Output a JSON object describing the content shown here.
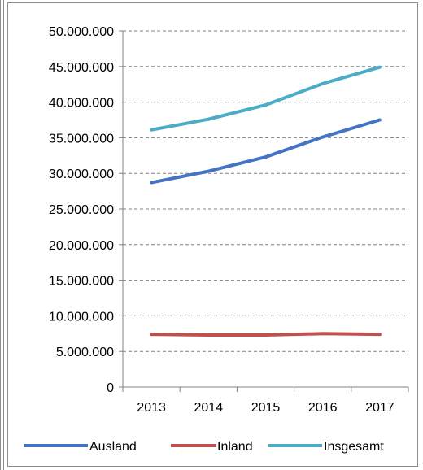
{
  "chart_data": {
    "type": "line",
    "title": "",
    "xlabel": "",
    "ylabel": "",
    "x": [
      "2013",
      "2014",
      "2015",
      "2016",
      "2017"
    ],
    "ylim": [
      0,
      50000000
    ],
    "yticks": [
      0,
      5000000,
      10000000,
      15000000,
      20000000,
      25000000,
      30000000,
      35000000,
      40000000,
      45000000,
      50000000
    ],
    "ytick_labels": [
      "0",
      "5.000.000",
      "10.000.000",
      "15.000.000",
      "20.000.000",
      "25.000.000",
      "30.000.000",
      "35.000.000",
      "40.000.000",
      "45.000.000",
      "50.000.000"
    ],
    "grid": "horizontal dashed",
    "legend_position": "bottom",
    "series": [
      {
        "name": "Ausland",
        "color": "#4472c4",
        "values": [
          28700000,
          30300000,
          32300000,
          35100000,
          37500000
        ]
      },
      {
        "name": "Inland",
        "color": "#c0504d",
        "values": [
          7400000,
          7300000,
          7300000,
          7500000,
          7400000
        ]
      },
      {
        "name": "Insgesamt",
        "color": "#4bacc6",
        "values": [
          36100000,
          37600000,
          39600000,
          42600000,
          44900000
        ]
      }
    ]
  }
}
